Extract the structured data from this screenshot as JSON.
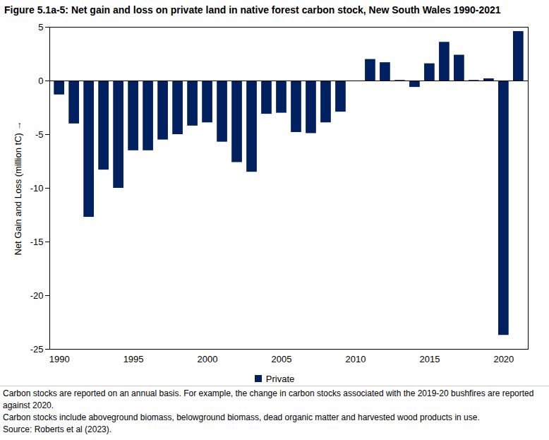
{
  "chart_data": {
    "type": "bar",
    "title": "Figure 5.1a-5: Net gain and loss on private land in native forest carbon stock, New South Wales 1990-2021",
    "y_label": "Net Gain and Loss (million tC)",
    "categories": [
      "1990",
      null,
      null,
      null,
      null,
      "1995",
      null,
      null,
      null,
      null,
      "2000",
      null,
      null,
      null,
      null,
      "2005",
      null,
      null,
      null,
      null,
      "2010",
      null,
      null,
      null,
      null,
      "2015",
      null,
      null,
      null,
      null,
      "2020",
      null
    ],
    "series": [
      {
        "name": "Private",
        "color": "#002060",
        "values": [
          -1.3,
          -4.0,
          -12.7,
          -8.3,
          -10.0,
          -6.5,
          -6.5,
          -5.5,
          -5.0,
          -4.2,
          -3.9,
          -5.7,
          -7.6,
          -8.5,
          -3.1,
          -3.0,
          -4.8,
          -4.9,
          -3.9,
          -2.9,
          -0.05,
          2.0,
          1.7,
          0.05,
          -0.6,
          1.6,
          3.6,
          2.4,
          0.05,
          0.2,
          -23.7,
          4.6
        ]
      }
    ],
    "ylim": [
      -25,
      5
    ],
    "yticks": [
      -25,
      -20,
      -15,
      -10,
      -5,
      0,
      5
    ],
    "grid": false,
    "legend": "bottom",
    "notes": [
      "Carbon stocks are reported on an annual basis. For example, the change in carbon stocks associated with the 2019-20 bushfires are reported against 2020.",
      "Carbon stocks include aboveground biomass, belowground biomass, dead organic matter and harvested wood products in use.",
      "Source: Roberts et al (2023)."
    ]
  }
}
